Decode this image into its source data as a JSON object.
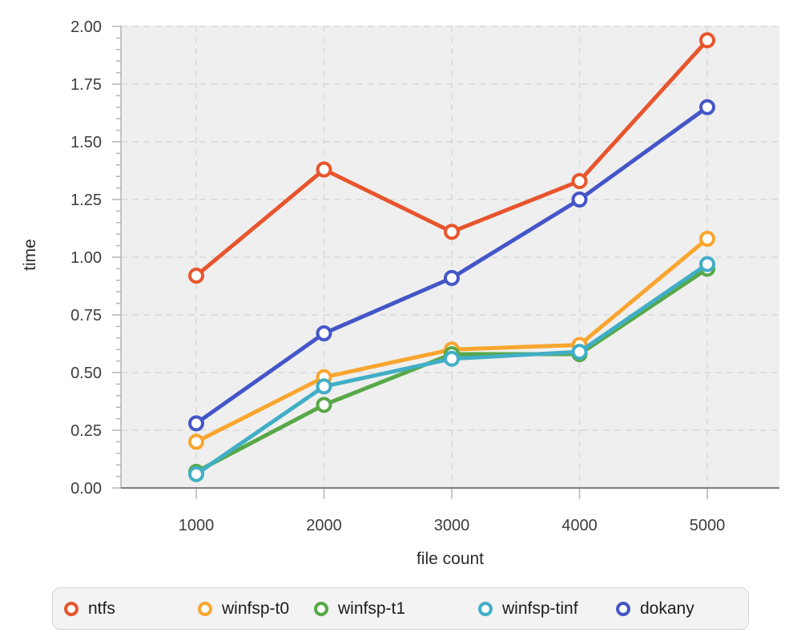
{
  "chart_data": {
    "type": "line",
    "title": "",
    "xlabel": "file count",
    "ylabel": "time",
    "x": [
      1000,
      2000,
      3000,
      4000,
      5000
    ],
    "x_tick_labels": [
      "1000",
      "2000",
      "3000",
      "4000",
      "5000"
    ],
    "y_tick_labels": [
      "0.00",
      "0.25",
      "0.50",
      "0.75",
      "1.00",
      "1.25",
      "1.50",
      "1.75",
      "2.00"
    ],
    "ylim": [
      0,
      2
    ],
    "y_tick_step": 0.25,
    "y_minor_tick_step": 0.05,
    "grid": "dashed",
    "legend_position": "bottom",
    "plot_background": "#efefef",
    "gridline_color": "#d9d9d9",
    "tick_color": "#b5b5b5",
    "axis_line_color": "#7d7d7d",
    "series": [
      {
        "name": "ntfs",
        "color": "#e8552d",
        "values": [
          0.92,
          1.38,
          1.11,
          1.33,
          1.94
        ]
      },
      {
        "name": "winfsp-t0",
        "color": "#f9a52e",
        "values": [
          0.2,
          0.48,
          0.6,
          0.62,
          1.08
        ]
      },
      {
        "name": "winfsp-t1",
        "color": "#57a847",
        "values": [
          0.07,
          0.36,
          0.58,
          0.58,
          0.95
        ]
      },
      {
        "name": "winfsp-tinf",
        "color": "#41aec6",
        "values": [
          0.06,
          0.44,
          0.56,
          0.59,
          0.97
        ]
      },
      {
        "name": "dokany",
        "color": "#4456c7",
        "values": [
          0.28,
          0.67,
          0.91,
          1.25,
          1.65
        ]
      }
    ]
  }
}
